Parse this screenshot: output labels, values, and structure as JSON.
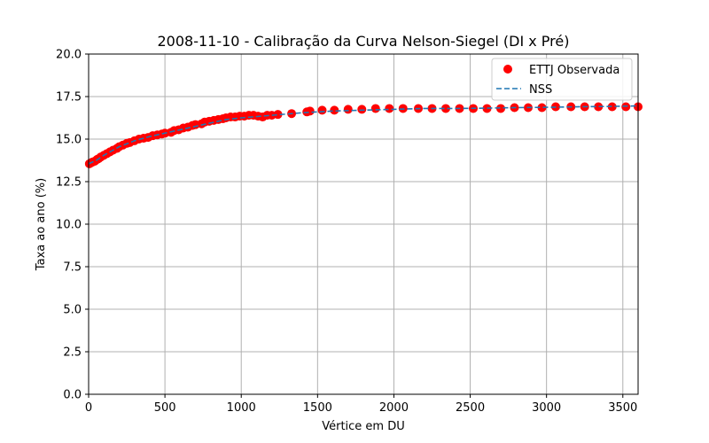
{
  "chart_data": {
    "type": "scatter",
    "title": "2008-11-10 - Calibração da Curva Nelson-Siegel (DI x Pré)",
    "xlabel": "Vértice em DU",
    "ylabel": "Taxa ao ano (%)",
    "xlim": [
      0,
      3600
    ],
    "ylim": [
      0,
      20
    ],
    "xticks": [
      0,
      500,
      1000,
      1500,
      2000,
      2500,
      3000,
      3500
    ],
    "xtick_labels": [
      "0",
      "500",
      "1000",
      "1500",
      "2000",
      "2500",
      "3000",
      "3500"
    ],
    "yticks": [
      0,
      2.5,
      5,
      7.5,
      10,
      12.5,
      15,
      17.5,
      20
    ],
    "ytick_labels": [
      "0.0",
      "2.5",
      "5.0",
      "7.5",
      "10.0",
      "12.5",
      "15.0",
      "17.5",
      "20.0"
    ],
    "grid": true,
    "legend_position": "top-right",
    "series": [
      {
        "name": "ETTJ Observada",
        "kind": "scatter",
        "color": "#ff0000",
        "x": [
          5,
          15,
          25,
          40,
          55,
          65,
          80,
          100,
          120,
          140,
          160,
          185,
          200,
          225,
          250,
          270,
          300,
          330,
          360,
          390,
          420,
          450,
          480,
          500,
          540,
          560,
          590,
          620,
          650,
          680,
          700,
          740,
          760,
          790,
          820,
          850,
          880,
          900,
          930,
          960,
          990,
          1020,
          1050,
          1080,
          1110,
          1140,
          1170,
          1200,
          1240,
          1330,
          1430,
          1450,
          1530,
          1610,
          1700,
          1790,
          1880,
          1970,
          2060,
          2160,
          2250,
          2340,
          2430,
          2520,
          2610,
          2700,
          2790,
          2880,
          2970,
          3060,
          3160,
          3250,
          3340,
          3430,
          3520,
          3600
        ],
        "y": [
          13.55,
          13.6,
          13.65,
          13.7,
          13.8,
          13.85,
          13.95,
          14.05,
          14.15,
          14.25,
          14.35,
          14.45,
          14.55,
          14.65,
          14.75,
          14.8,
          14.9,
          15.0,
          15.05,
          15.1,
          15.2,
          15.25,
          15.3,
          15.35,
          15.4,
          15.5,
          15.55,
          15.65,
          15.7,
          15.8,
          15.85,
          15.9,
          16.0,
          16.05,
          16.1,
          16.15,
          16.2,
          16.25,
          16.3,
          16.3,
          16.35,
          16.35,
          16.4,
          16.4,
          16.35,
          16.3,
          16.4,
          16.4,
          16.45,
          16.5,
          16.6,
          16.65,
          16.7,
          16.7,
          16.75,
          16.75,
          16.8,
          16.8,
          16.8,
          16.8,
          16.8,
          16.8,
          16.8,
          16.8,
          16.8,
          16.8,
          16.85,
          16.85,
          16.85,
          16.9,
          16.9,
          16.9,
          16.9,
          16.9,
          16.9,
          16.9
        ]
      },
      {
        "name": "NSS",
        "kind": "line",
        "style": "dashed",
        "color": "#1f77b4",
        "x": [
          0,
          50,
          100,
          200,
          300,
          400,
          500,
          600,
          700,
          800,
          900,
          1000,
          1200,
          1400,
          1600,
          1800,
          2000,
          2200,
          2400,
          2600,
          2800,
          3000,
          3200,
          3400,
          3600
        ],
        "y": [
          13.55,
          13.75,
          14.05,
          14.55,
          14.9,
          15.15,
          15.35,
          15.55,
          15.75,
          15.95,
          16.15,
          16.25,
          16.4,
          16.55,
          16.65,
          16.7,
          16.75,
          16.8,
          16.8,
          16.82,
          16.85,
          16.87,
          16.9,
          16.92,
          16.95
        ]
      }
    ]
  }
}
